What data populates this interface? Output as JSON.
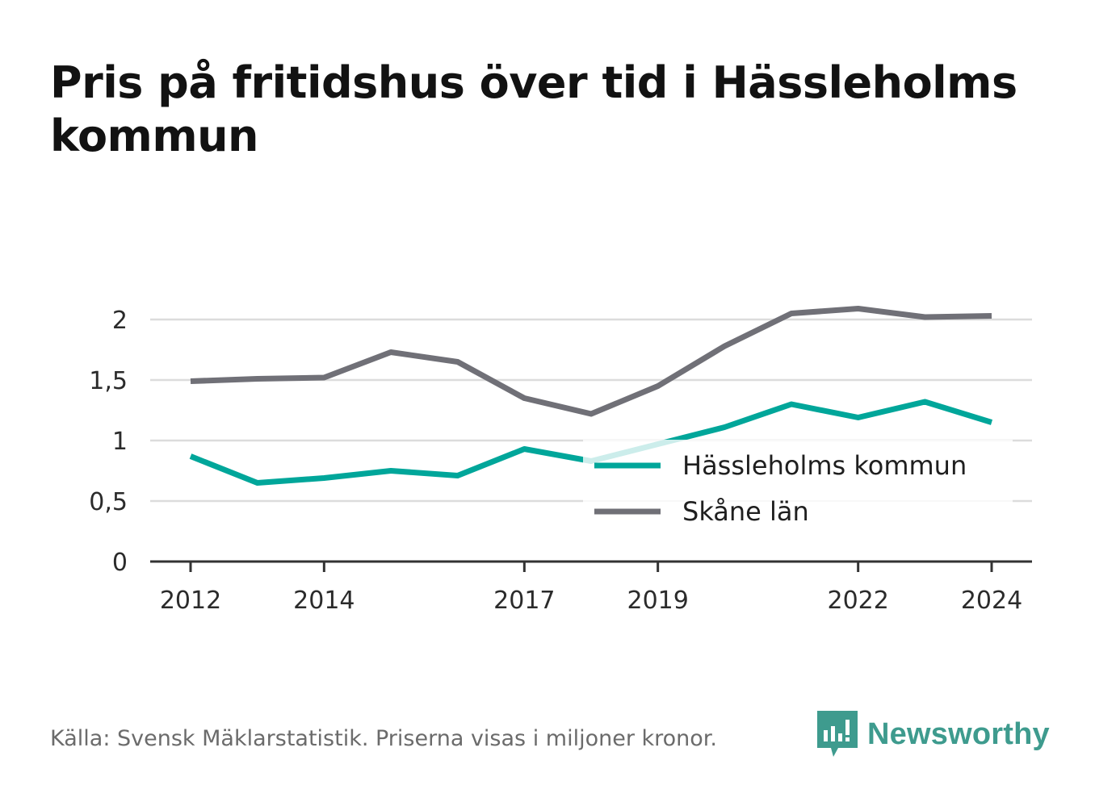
{
  "title": "Pris på fritidshus över tid i Hässleholms kommun",
  "source": "Källa: Svensk Mäklarstatistik. Priserna visas i miljoner kronor.",
  "brand": {
    "name": "Newsworthy",
    "icon": "newsworthy-logo-icon",
    "color": "#3e9b8e"
  },
  "chart_data": {
    "type": "line",
    "title": "Pris på fritidshus över tid i Hässleholms kommun",
    "xlabel": "",
    "ylabel": "",
    "x": [
      2012,
      2013,
      2014,
      2015,
      2016,
      2017,
      2018,
      2019,
      2020,
      2021,
      2022,
      2023,
      2024
    ],
    "xticks": [
      "2012",
      "2014",
      "2017",
      "2019",
      "2022",
      "2024"
    ],
    "ylim": [
      0,
      2.2
    ],
    "yticks": [
      "0",
      "0,5",
      "1",
      "1,5",
      "2"
    ],
    "grid": true,
    "legend": "bottom-right, inside",
    "series": [
      {
        "name": "Hässleholms kommun",
        "color": "#00a69a",
        "values": [
          0.87,
          0.65,
          0.69,
          0.75,
          0.71,
          0.93,
          0.83,
          0.97,
          1.11,
          1.3,
          1.19,
          1.32,
          1.15
        ]
      },
      {
        "name": "Skåne län",
        "color": "#707077",
        "values": [
          1.49,
          1.51,
          1.52,
          1.73,
          1.65,
          1.35,
          1.22,
          1.45,
          1.78,
          2.05,
          2.09,
          2.02,
          2.03
        ]
      }
    ]
  }
}
